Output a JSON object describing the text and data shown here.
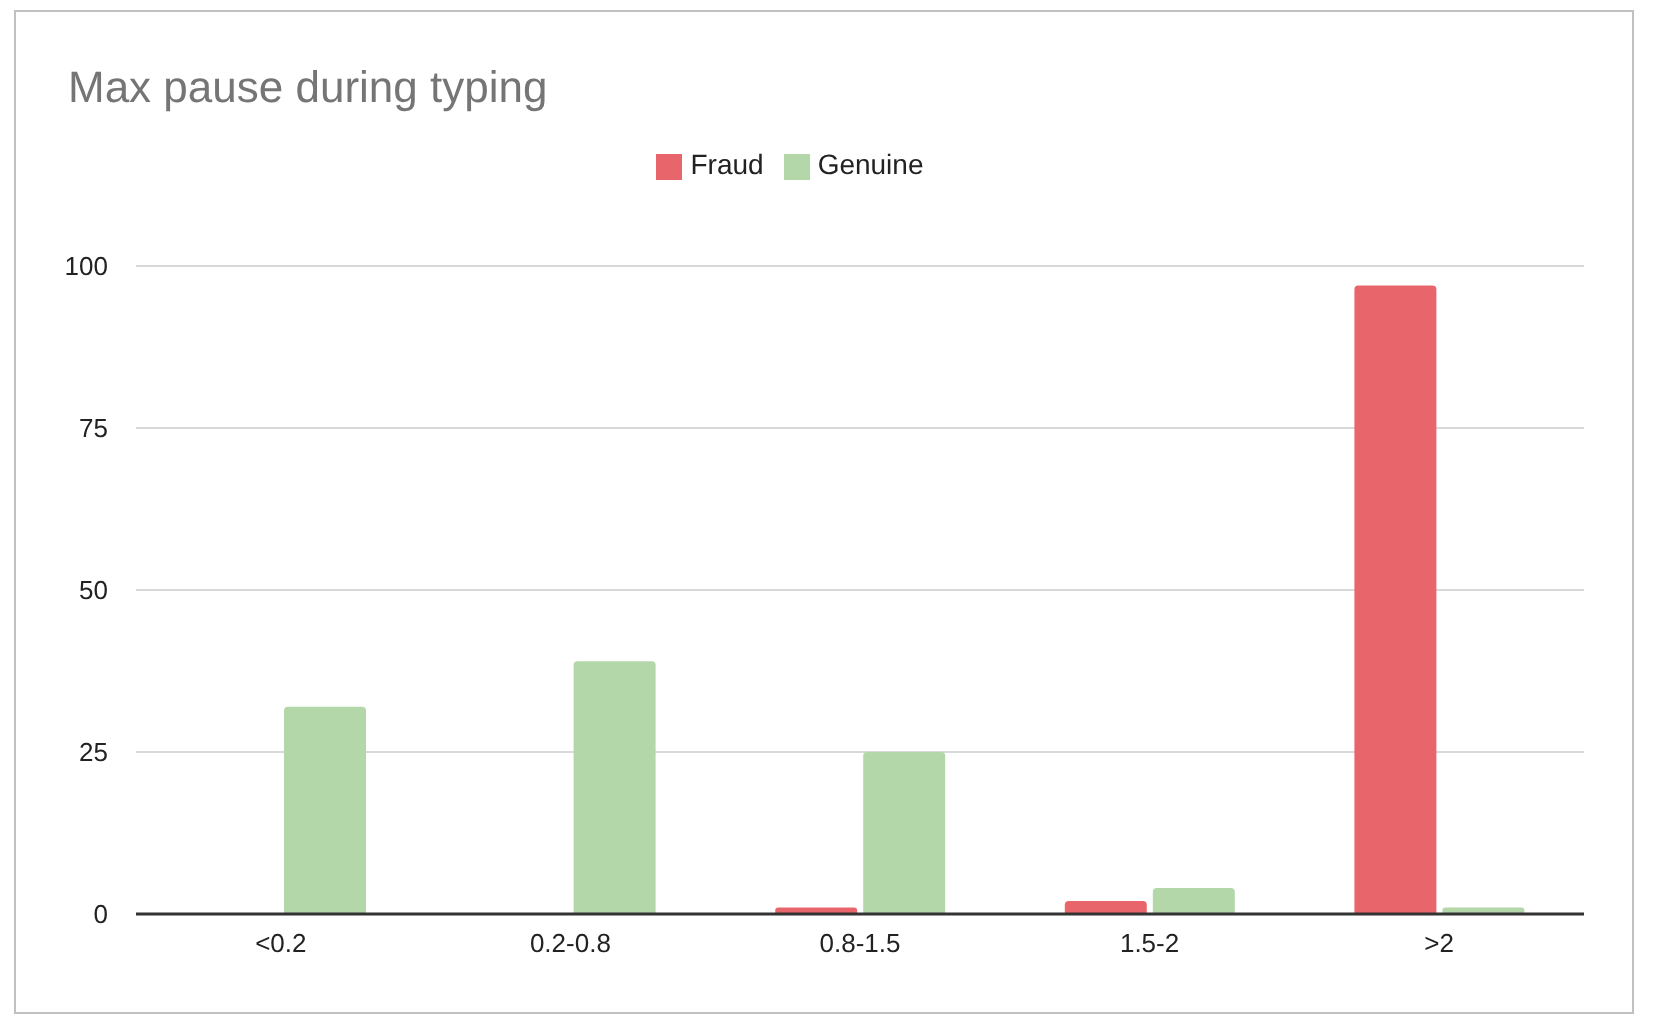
{
  "chart_data": {
    "type": "bar",
    "title": "Max pause during typing",
    "categories": [
      "<0.2",
      "0.2-0.8",
      "0.8-1.5",
      "1.5-2",
      ">2"
    ],
    "series": [
      {
        "name": "Fraud",
        "color": "#e8666b",
        "values": [
          0,
          0,
          1,
          2,
          97
        ]
      },
      {
        "name": "Genuine",
        "color": "#b3d7a8",
        "values": [
          32,
          39,
          25,
          4,
          1
        ]
      }
    ],
    "ylim": [
      0,
      100
    ],
    "yticks": [
      0,
      25,
      50,
      75,
      100
    ],
    "grid": "y",
    "legend": "top"
  }
}
